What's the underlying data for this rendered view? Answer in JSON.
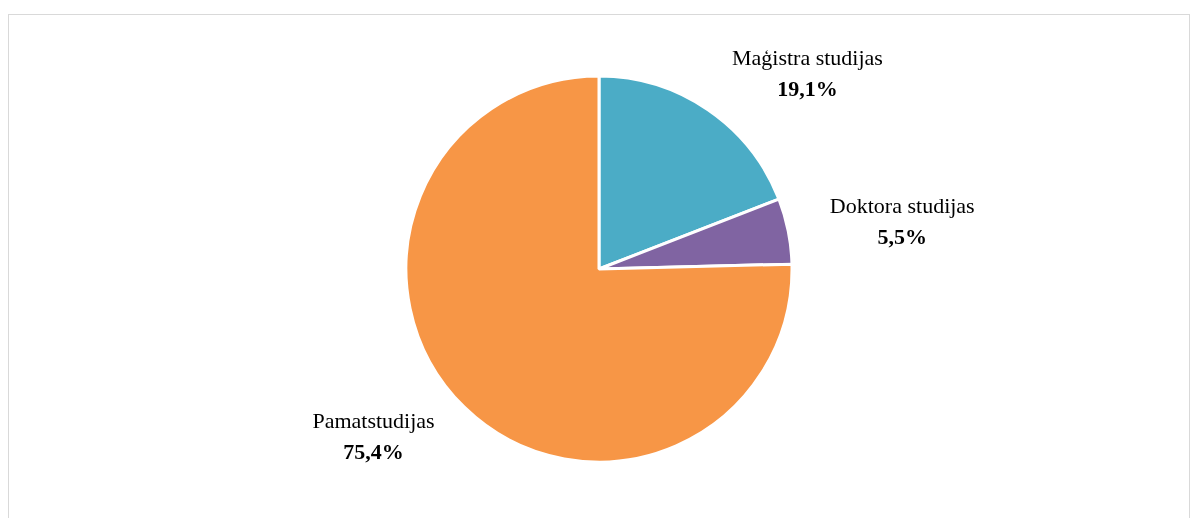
{
  "chart_data": {
    "type": "pie",
    "categories": [
      "Maģistra studijas",
      "Doktora studijas",
      "Pamatstudijas"
    ],
    "values": [
      19.1,
      5.5,
      75.4
    ],
    "value_labels": [
      "19,1%",
      "5,5%",
      "75,4%"
    ],
    "colors": [
      "#4bacc6",
      "#8064a2",
      "#f79646"
    ],
    "legend": false
  }
}
